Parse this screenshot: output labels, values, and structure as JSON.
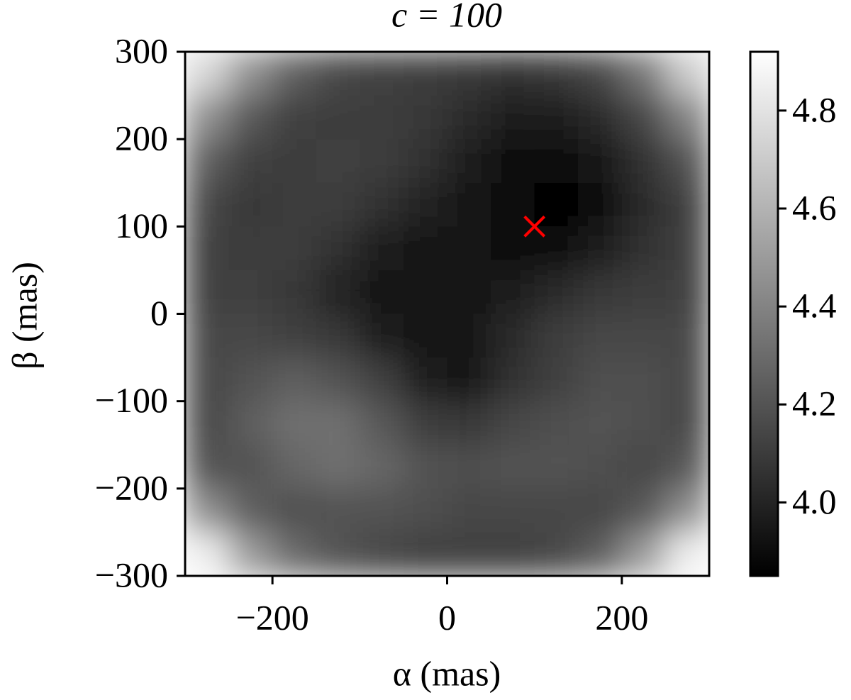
{
  "chart_data": {
    "type": "heatmap",
    "title": "c = 100",
    "xlabel": "α (mas)",
    "ylabel": "β (mas)",
    "x": [
      -275,
      -225,
      -175,
      -125,
      -75,
      -25,
      25,
      75,
      125,
      175,
      225,
      275
    ],
    "y": [
      275,
      225,
      175,
      125,
      75,
      25,
      -25,
      -75,
      -125,
      -175,
      -225,
      -275
    ],
    "z": [
      [
        4.75,
        4.45,
        4.25,
        4.15,
        4.12,
        4.1,
        4.08,
        4.06,
        4.08,
        4.15,
        4.35,
        4.7
      ],
      [
        4.45,
        4.22,
        4.12,
        4.1,
        4.1,
        4.08,
        4.02,
        3.98,
        3.98,
        4.02,
        4.15,
        4.4
      ],
      [
        4.25,
        4.12,
        4.1,
        4.12,
        4.1,
        4.05,
        3.98,
        3.92,
        3.9,
        3.95,
        4.05,
        4.2
      ],
      [
        4.15,
        4.08,
        4.1,
        4.1,
        4.05,
        4.0,
        3.95,
        3.88,
        3.87,
        3.92,
        4.02,
        4.12
      ],
      [
        4.12,
        4.1,
        4.1,
        4.05,
        3.98,
        3.95,
        3.95,
        3.9,
        3.9,
        3.98,
        4.05,
        4.12
      ],
      [
        4.12,
        4.12,
        4.08,
        4.0,
        3.95,
        3.93,
        3.95,
        3.98,
        4.02,
        4.08,
        4.1,
        4.12
      ],
      [
        4.15,
        4.15,
        4.12,
        4.08,
        3.98,
        3.93,
        3.93,
        4.02,
        4.1,
        4.15,
        4.15,
        4.15
      ],
      [
        4.15,
        4.2,
        4.25,
        4.2,
        4.12,
        3.98,
        3.95,
        4.05,
        4.12,
        4.18,
        4.18,
        4.15
      ],
      [
        4.15,
        4.25,
        4.32,
        4.32,
        4.22,
        4.1,
        4.08,
        4.15,
        4.18,
        4.2,
        4.18,
        4.15
      ],
      [
        4.2,
        4.2,
        4.28,
        4.32,
        4.28,
        4.2,
        4.18,
        4.2,
        4.2,
        4.18,
        4.15,
        4.22
      ],
      [
        4.45,
        4.25,
        4.18,
        4.2,
        4.2,
        4.18,
        4.15,
        4.15,
        4.15,
        4.15,
        4.22,
        4.45
      ],
      [
        4.85,
        4.5,
        4.3,
        4.2,
        4.15,
        4.12,
        4.12,
        4.12,
        4.15,
        4.25,
        4.5,
        4.85
      ]
    ],
    "xlim": [
      -300,
      300
    ],
    "ylim": [
      -300,
      300
    ],
    "xticks": [
      {
        "value": -200,
        "label": "−200"
      },
      0,
      200
    ],
    "yticks": [
      {
        "value": -300,
        "label": "−300"
      },
      {
        "value": -200,
        "label": "−200"
      },
      {
        "value": -100,
        "label": "−100"
      },
      0,
      100,
      200,
      300
    ],
    "colormap": "gray",
    "clim": [
      3.85,
      4.92
    ],
    "cticks": [
      {
        "value": 4,
        "label": "4.0"
      },
      4.2,
      4.4,
      4.6,
      4.8
    ],
    "marker": {
      "x": 100,
      "y": 100,
      "color": "#ff0000"
    }
  }
}
